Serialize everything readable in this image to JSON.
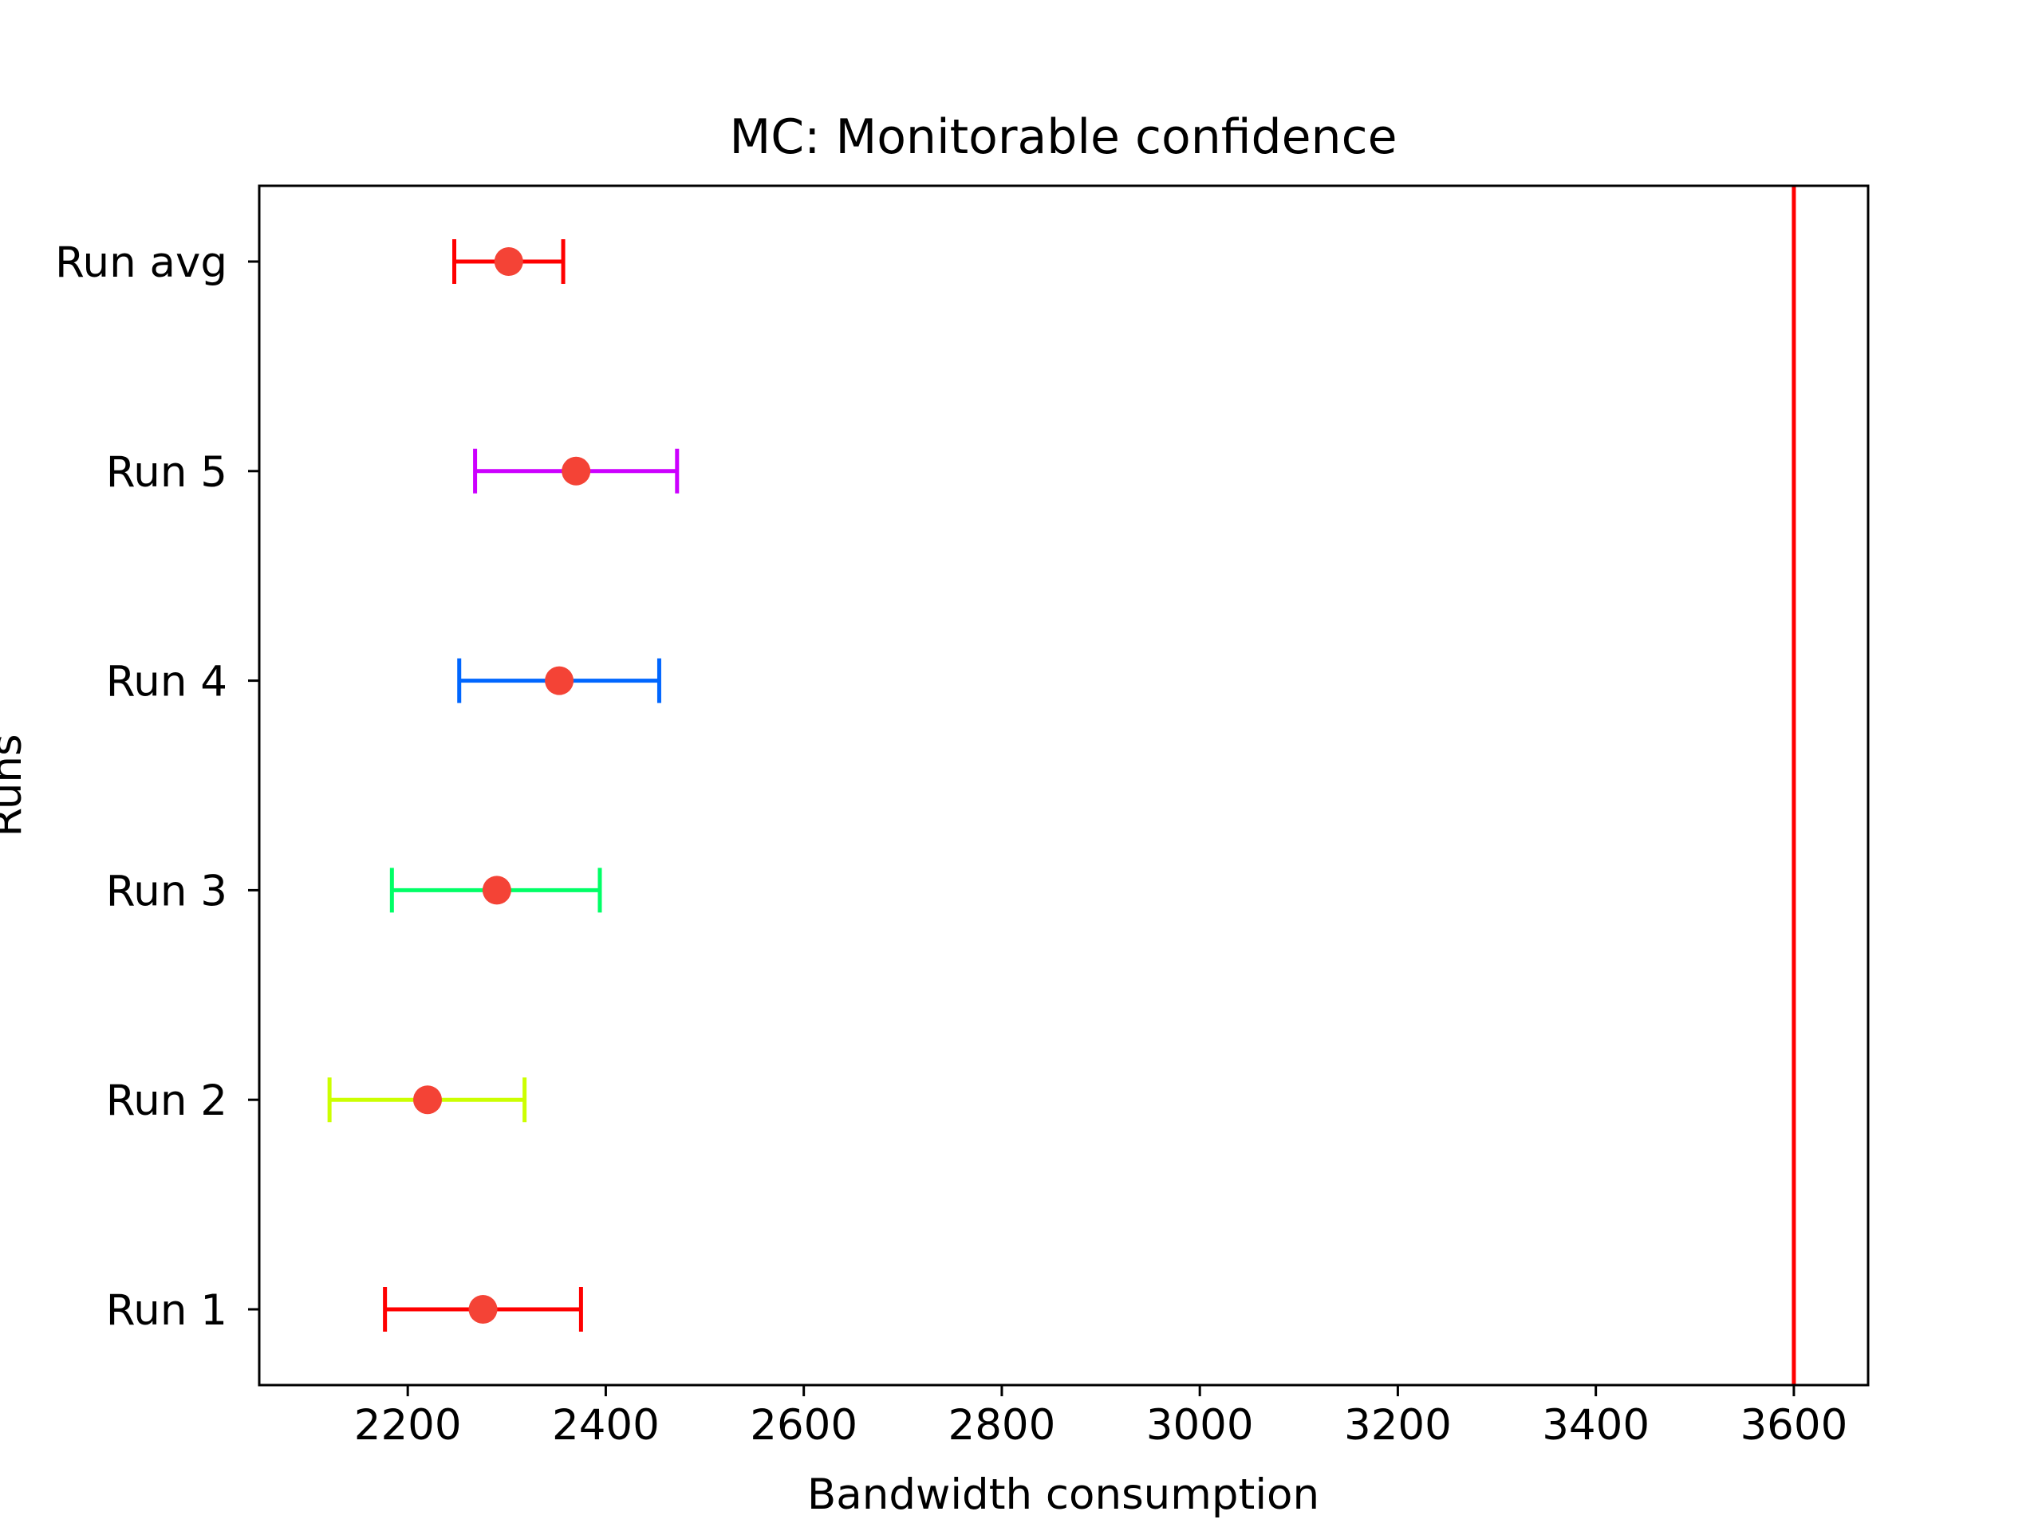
{
  "chart_data": {
    "type": "errorbar",
    "title": "MC: Monitorable confidence",
    "xlabel": "Bandwidth consumption",
    "ylabel": "Runs",
    "xlim": [
      2050,
      3675
    ],
    "xticks": [
      2200,
      2400,
      2600,
      2800,
      3000,
      3200,
      3400,
      3600
    ],
    "categories": [
      "Run 1",
      "Run 2",
      "Run 3",
      "Run 4",
      "Run 5",
      "Run avg"
    ],
    "points": [
      {
        "label": "Run 1",
        "mean": 2276,
        "low": 2177,
        "high": 2375,
        "color": "#ff0000"
      },
      {
        "label": "Run 2",
        "mean": 2220,
        "low": 2121,
        "high": 2318,
        "color": "#ccff00"
      },
      {
        "label": "Run 3",
        "mean": 2290,
        "low": 2184,
        "high": 2394,
        "color": "#00ff66"
      },
      {
        "label": "Run 4",
        "mean": 2353,
        "low": 2252,
        "high": 2454,
        "color": "#0066ff"
      },
      {
        "label": "Run 5",
        "mean": 2370,
        "low": 2268,
        "high": 2472,
        "color": "#cc00ff"
      },
      {
        "label": "Run avg",
        "mean": 2302,
        "low": 2247,
        "high": 2357,
        "color": "#ff0000"
      }
    ],
    "marker_color": "#f44336",
    "reference_line": {
      "x": 3600,
      "color": "#ff0000"
    },
    "grid": false
  }
}
